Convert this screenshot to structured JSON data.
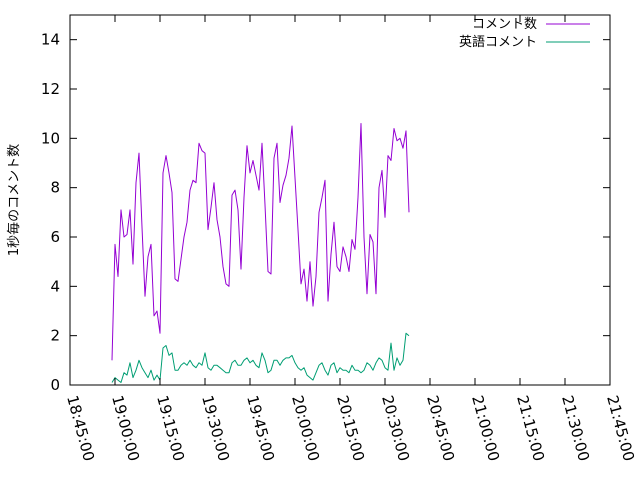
{
  "chart_data": {
    "type": "line",
    "title": "",
    "xlabel": "",
    "ylabel": "1秒毎のコメント数",
    "ylim": [
      0,
      15
    ],
    "xlim": [
      "18:45:00",
      "21:45:00"
    ],
    "y_ticks": [
      "0",
      "2",
      "4",
      "6",
      "8",
      "10",
      "12",
      "14"
    ],
    "x_ticks": [
      "18:45:00",
      "19:00:00",
      "19:15:00",
      "19:30:00",
      "19:45:00",
      "20:00:00",
      "20:15:00",
      "20:30:00",
      "20:45:00",
      "21:00:00",
      "21:15:00",
      "21:30:00",
      "21:45:00"
    ],
    "grid": false,
    "legend_position": "top-right",
    "series": [
      {
        "name": "コメント数",
        "color": "#9400d3",
        "points": [
          [
            "18:59:00",
            1.0
          ],
          [
            "19:00:00",
            5.7
          ],
          [
            "19:01:00",
            4.4
          ],
          [
            "19:02:00",
            7.1
          ],
          [
            "19:03:00",
            6.0
          ],
          [
            "19:04:00",
            6.1
          ],
          [
            "19:05:00",
            7.1
          ],
          [
            "19:06:00",
            4.9
          ],
          [
            "19:07:00",
            8.2
          ],
          [
            "19:08:00",
            9.4
          ],
          [
            "19:09:00",
            6.4
          ],
          [
            "19:10:00",
            3.6
          ],
          [
            "19:11:00",
            5.2
          ],
          [
            "19:12:00",
            5.7
          ],
          [
            "19:13:00",
            2.8
          ],
          [
            "19:14:00",
            3.0
          ],
          [
            "19:15:00",
            2.1
          ],
          [
            "19:16:00",
            8.6
          ],
          [
            "19:17:00",
            9.3
          ],
          [
            "19:18:00",
            8.6
          ],
          [
            "19:19:00",
            7.8
          ],
          [
            "19:20:00",
            4.3
          ],
          [
            "19:21:00",
            4.2
          ],
          [
            "19:22:00",
            5.1
          ],
          [
            "19:23:00",
            6.0
          ],
          [
            "19:24:00",
            6.6
          ],
          [
            "19:25:00",
            7.9
          ],
          [
            "19:26:00",
            8.3
          ],
          [
            "19:27:00",
            8.2
          ],
          [
            "19:28:00",
            9.8
          ],
          [
            "19:29:00",
            9.5
          ],
          [
            "19:30:00",
            9.4
          ],
          [
            "19:31:00",
            6.3
          ],
          [
            "19:32:00",
            7.2
          ],
          [
            "19:33:00",
            8.2
          ],
          [
            "19:34:00",
            6.7
          ],
          [
            "19:35:00",
            6.0
          ],
          [
            "19:36:00",
            4.8
          ],
          [
            "19:37:00",
            4.1
          ],
          [
            "19:38:00",
            4.0
          ],
          [
            "19:39:00",
            7.7
          ],
          [
            "19:40:00",
            7.9
          ],
          [
            "19:41:00",
            7.1
          ],
          [
            "19:42:00",
            4.7
          ],
          [
            "19:43:00",
            7.6
          ],
          [
            "19:44:00",
            9.7
          ],
          [
            "19:45:00",
            8.6
          ],
          [
            "19:46:00",
            9.1
          ],
          [
            "19:47:00",
            8.5
          ],
          [
            "19:48:00",
            7.9
          ],
          [
            "19:49:00",
            9.8
          ],
          [
            "19:50:00",
            7.3
          ],
          [
            "19:51:00",
            4.6
          ],
          [
            "19:52:00",
            4.5
          ],
          [
            "19:53:00",
            9.2
          ],
          [
            "19:54:00",
            9.8
          ],
          [
            "19:55:00",
            7.4
          ],
          [
            "19:56:00",
            8.1
          ],
          [
            "19:57:00",
            8.5
          ],
          [
            "19:58:00",
            9.2
          ],
          [
            "19:59:00",
            10.5
          ],
          [
            "20:00:00",
            8.4
          ],
          [
            "20:01:00",
            6.3
          ],
          [
            "20:02:00",
            4.1
          ],
          [
            "20:03:00",
            4.7
          ],
          [
            "20:04:00",
            3.4
          ],
          [
            "20:05:00",
            5.0
          ],
          [
            "20:06:00",
            3.2
          ],
          [
            "20:07:00",
            4.4
          ],
          [
            "20:08:00",
            7.0
          ],
          [
            "20:09:00",
            7.6
          ],
          [
            "20:10:00",
            8.3
          ],
          [
            "20:11:00",
            3.4
          ],
          [
            "20:12:00",
            5.3
          ],
          [
            "20:13:00",
            6.6
          ],
          [
            "20:14:00",
            4.8
          ],
          [
            "20:15:00",
            4.6
          ],
          [
            "20:16:00",
            5.6
          ],
          [
            "20:17:00",
            5.2
          ],
          [
            "20:18:00",
            4.6
          ],
          [
            "20:19:00",
            5.9
          ],
          [
            "20:20:00",
            5.5
          ],
          [
            "20:21:00",
            7.6
          ],
          [
            "20:22:00",
            10.6
          ],
          [
            "20:23:00",
            6.0
          ],
          [
            "20:24:00",
            3.7
          ],
          [
            "20:25:00",
            6.1
          ],
          [
            "20:26:00",
            5.8
          ],
          [
            "20:27:00",
            3.7
          ],
          [
            "20:28:00",
            8.0
          ],
          [
            "20:29:00",
            8.7
          ],
          [
            "20:30:00",
            6.8
          ],
          [
            "20:31:00",
            9.3
          ],
          [
            "20:32:00",
            9.1
          ],
          [
            "20:33:00",
            10.4
          ],
          [
            "20:34:00",
            9.9
          ],
          [
            "20:35:00",
            10.0
          ],
          [
            "20:36:00",
            9.6
          ],
          [
            "20:37:00",
            10.3
          ],
          [
            "20:38:00",
            7.0
          ]
        ]
      },
      {
        "name": "英語コメント",
        "color": "#009e73",
        "points": [
          [
            "18:59:00",
            0.1
          ],
          [
            "19:00:00",
            0.3
          ],
          [
            "19:01:00",
            0.2
          ],
          [
            "19:02:00",
            0.1
          ],
          [
            "19:03:00",
            0.5
          ],
          [
            "19:04:00",
            0.4
          ],
          [
            "19:05:00",
            0.9
          ],
          [
            "19:06:00",
            0.3
          ],
          [
            "19:07:00",
            0.6
          ],
          [
            "19:08:00",
            1.0
          ],
          [
            "19:09:00",
            0.7
          ],
          [
            "19:10:00",
            0.5
          ],
          [
            "19:11:00",
            0.3
          ],
          [
            "19:12:00",
            0.6
          ],
          [
            "19:13:00",
            0.2
          ],
          [
            "19:14:00",
            0.4
          ],
          [
            "19:15:00",
            0.2
          ],
          [
            "19:16:00",
            1.5
          ],
          [
            "19:17:00",
            1.6
          ],
          [
            "19:18:00",
            1.2
          ],
          [
            "19:19:00",
            1.3
          ],
          [
            "19:20:00",
            0.6
          ],
          [
            "19:21:00",
            0.6
          ],
          [
            "19:22:00",
            0.8
          ],
          [
            "19:23:00",
            0.9
          ],
          [
            "19:24:00",
            0.8
          ],
          [
            "19:25:00",
            1.0
          ],
          [
            "19:26:00",
            0.8
          ],
          [
            "19:27:00",
            0.7
          ],
          [
            "19:28:00",
            0.9
          ],
          [
            "19:29:00",
            0.8
          ],
          [
            "19:30:00",
            1.3
          ],
          [
            "19:31:00",
            0.7
          ],
          [
            "19:32:00",
            0.6
          ],
          [
            "19:33:00",
            0.8
          ],
          [
            "19:34:00",
            0.8
          ],
          [
            "19:35:00",
            0.7
          ],
          [
            "19:36:00",
            0.6
          ],
          [
            "19:37:00",
            0.5
          ],
          [
            "19:38:00",
            0.5
          ],
          [
            "19:39:00",
            0.9
          ],
          [
            "19:40:00",
            1.0
          ],
          [
            "19:41:00",
            0.8
          ],
          [
            "19:42:00",
            0.8
          ],
          [
            "19:43:00",
            1.0
          ],
          [
            "19:44:00",
            1.1
          ],
          [
            "19:45:00",
            0.9
          ],
          [
            "19:46:00",
            1.0
          ],
          [
            "19:47:00",
            0.8
          ],
          [
            "19:48:00",
            0.7
          ],
          [
            "19:49:00",
            1.3
          ],
          [
            "19:50:00",
            1.0
          ],
          [
            "19:51:00",
            0.5
          ],
          [
            "19:52:00",
            0.6
          ],
          [
            "19:53:00",
            1.0
          ],
          [
            "19:54:00",
            1.0
          ],
          [
            "19:55:00",
            0.8
          ],
          [
            "19:56:00",
            1.0
          ],
          [
            "19:57:00",
            1.1
          ],
          [
            "19:58:00",
            1.1
          ],
          [
            "19:59:00",
            1.2
          ],
          [
            "20:00:00",
            0.9
          ],
          [
            "20:01:00",
            0.7
          ],
          [
            "20:02:00",
            0.6
          ],
          [
            "20:03:00",
            0.7
          ],
          [
            "20:04:00",
            0.4
          ],
          [
            "20:05:00",
            0.3
          ],
          [
            "20:06:00",
            0.2
          ],
          [
            "20:07:00",
            0.5
          ],
          [
            "20:08:00",
            0.8
          ],
          [
            "20:09:00",
            0.9
          ],
          [
            "20:10:00",
            0.6
          ],
          [
            "20:11:00",
            0.4
          ],
          [
            "20:12:00",
            0.8
          ],
          [
            "20:13:00",
            0.9
          ],
          [
            "20:14:00",
            0.5
          ],
          [
            "20:15:00",
            0.7
          ],
          [
            "20:16:00",
            0.6
          ],
          [
            "20:17:00",
            0.6
          ],
          [
            "20:18:00",
            0.5
          ],
          [
            "20:19:00",
            0.8
          ],
          [
            "20:20:00",
            0.6
          ],
          [
            "20:21:00",
            0.6
          ],
          [
            "20:22:00",
            0.5
          ],
          [
            "20:23:00",
            0.6
          ],
          [
            "20:24:00",
            0.9
          ],
          [
            "20:25:00",
            0.8
          ],
          [
            "20:26:00",
            0.6
          ],
          [
            "20:27:00",
            0.9
          ],
          [
            "20:28:00",
            1.1
          ],
          [
            "20:29:00",
            1.0
          ],
          [
            "20:30:00",
            0.7
          ],
          [
            "20:31:00",
            0.6
          ],
          [
            "20:32:00",
            1.7
          ],
          [
            "20:33:00",
            0.6
          ],
          [
            "20:34:00",
            1.1
          ],
          [
            "20:35:00",
            0.8
          ],
          [
            "20:36:00",
            1.0
          ],
          [
            "20:37:00",
            2.1
          ],
          [
            "20:38:00",
            2.0
          ]
        ]
      }
    ]
  }
}
